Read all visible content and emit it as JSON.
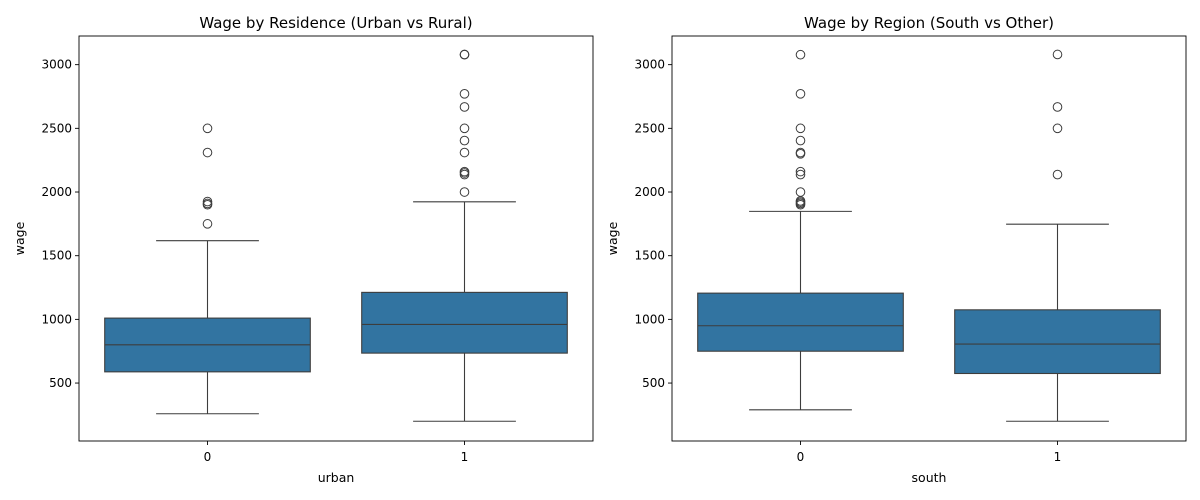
{
  "colors": {
    "box_fill": "#3274a1",
    "line": "#3d3d3d",
    "axis": "#000000"
  },
  "chart_data": [
    {
      "type": "box",
      "title": "Wage by Residence (Urban vs Rural)",
      "xlabel": "urban",
      "ylabel": "wage",
      "categories": [
        "0",
        "1"
      ],
      "ylim": [
        45,
        3225
      ],
      "yticks": [
        500,
        1000,
        1500,
        2000,
        2500,
        3000
      ],
      "yticklabels": [
        "500",
        "1000",
        "1500",
        "2000",
        "2500",
        "3000"
      ],
      "boxes": [
        {
          "category": "0",
          "whisker_low": 259,
          "q1": 588,
          "median": 800,
          "q3": 1010,
          "whisker_high": 1618,
          "outliers": [
            1750,
            1900,
            1910,
            1925,
            2310,
            2500
          ]
        },
        {
          "category": "1",
          "whisker_low": 200,
          "q1": 735,
          "median": 960,
          "q3": 1212,
          "whisker_high": 1923,
          "outliers": [
            2000,
            2137,
            2150,
            2160,
            2310,
            2404,
            2500,
            2668,
            2771,
            3078,
            3080
          ]
        }
      ]
    },
    {
      "type": "box",
      "title": "Wage by Region (South vs Other)",
      "xlabel": "south",
      "ylabel": "wage",
      "categories": [
        "0",
        "1"
      ],
      "ylim": [
        45,
        3225
      ],
      "yticks": [
        500,
        1000,
        1500,
        2000,
        2500,
        3000
      ],
      "yticklabels": [
        "500",
        "1000",
        "1500",
        "2000",
        "2500",
        "3000"
      ],
      "boxes": [
        {
          "category": "0",
          "whisker_low": 290,
          "q1": 750,
          "median": 950,
          "q3": 1206,
          "whisker_high": 1848,
          "outliers": [
            1900,
            1910,
            1920,
            1930,
            2000,
            2137,
            2160,
            2300,
            2310,
            2404,
            2500,
            2771,
            3078
          ]
        },
        {
          "category": "1",
          "whisker_low": 200,
          "q1": 575,
          "median": 806,
          "q3": 1075,
          "whisker_high": 1747,
          "outliers": [
            2137,
            2500,
            2668,
            3080
          ]
        }
      ]
    }
  ]
}
